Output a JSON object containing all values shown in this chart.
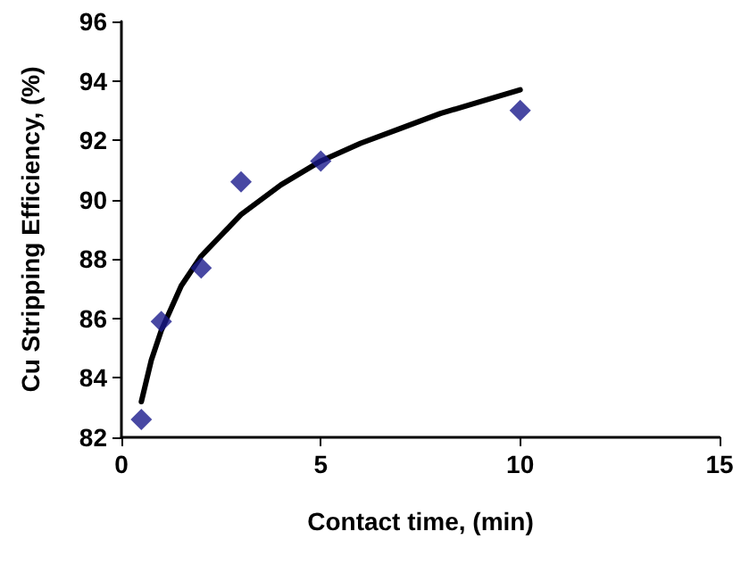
{
  "chart_data": {
    "type": "scatter",
    "xlabel": "Contact time, (min)",
    "ylabel": "Cu Stripping Efficiency, (%)",
    "xlim": [
      0,
      15
    ],
    "xticks": [
      0,
      5,
      10,
      15
    ],
    "ylim": [
      82,
      96
    ],
    "yticks": [
      82,
      84,
      86,
      88,
      90,
      92,
      94,
      96
    ],
    "grid": false,
    "series": [
      {
        "color": "#1a1a8c",
        "marker": "diamond",
        "x": [
          0.5,
          1,
          2,
          3,
          5,
          10
        ],
        "values": [
          82.6,
          85.9,
          87.7,
          90.6,
          91.3,
          93.0
        ]
      },
      {
        "type": "line",
        "color": "#000000",
        "marker": "none",
        "line_style": "solid",
        "x": [
          0.5,
          0.75,
          1,
          1.5,
          2,
          3,
          4,
          5,
          6,
          7,
          8,
          9,
          10
        ],
        "values": [
          83.2,
          84.6,
          85.6,
          87.1,
          88.1,
          89.5,
          90.5,
          91.3,
          91.9,
          92.4,
          92.9,
          93.3,
          93.7
        ]
      }
    ]
  }
}
